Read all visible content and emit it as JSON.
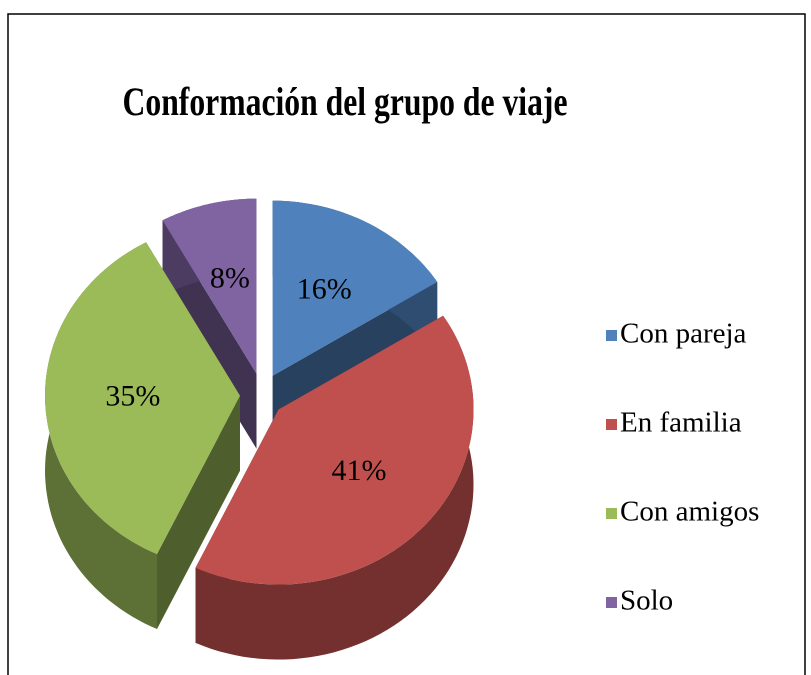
{
  "chart_data": {
    "type": "pie",
    "title": "Conformación del grupo de viaje",
    "categories": [
      "Con pareja",
      "En familia",
      "Con amigos",
      "Solo"
    ],
    "values": [
      16,
      41,
      35,
      8
    ],
    "value_labels": [
      "16%",
      "41%",
      "35%",
      "8%"
    ],
    "colors": [
      "#4f81bd",
      "#c0504d",
      "#9bbb59",
      "#8064a2"
    ],
    "legend": "right"
  }
}
